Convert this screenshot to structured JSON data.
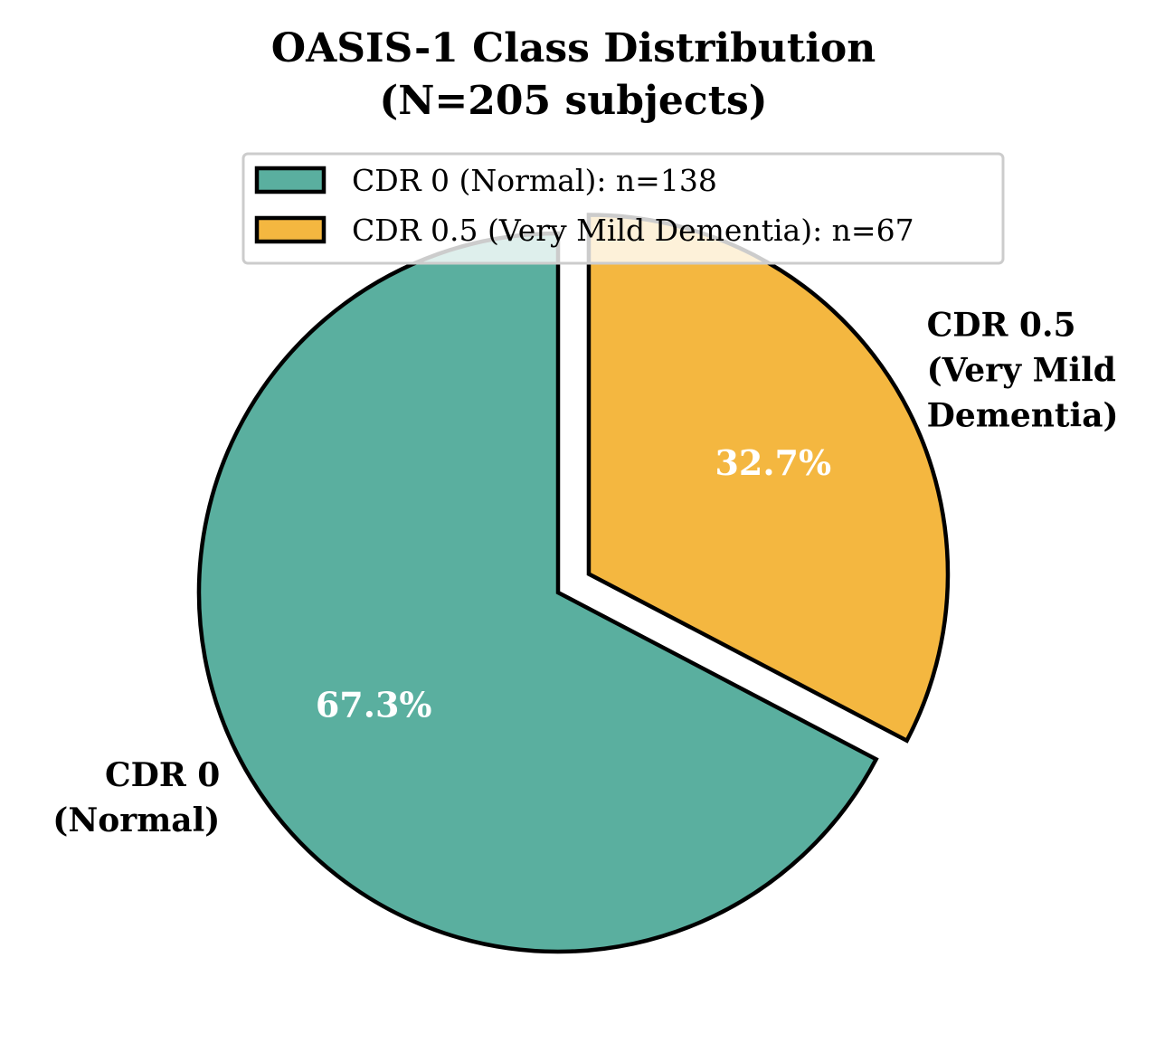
{
  "chart_data": {
    "type": "pie",
    "title": "OASIS-1 Class Distribution",
    "subtitle": "(N=205 subjects)",
    "start_angle_deg": 90,
    "direction": "clockwise",
    "slices": [
      {
        "label_lines": [
          "CDR 0.5",
          "(Very Mild",
          "Dementia)"
        ],
        "legend": "CDR 0.5 (Very Mild Dementia): n=67",
        "value": 67,
        "percent_label": "32.7%",
        "color": "#F4B740",
        "exploded": true
      },
      {
        "label_lines": [
          "CDR 0",
          "(Normal)"
        ],
        "legend": "CDR 0 (Normal): n=138",
        "value": 138,
        "percent_label": "67.3%",
        "color": "#5AAF9F",
        "exploded": false
      }
    ],
    "legend_order": [
      1,
      0
    ],
    "legend_placement": "upper-center"
  }
}
